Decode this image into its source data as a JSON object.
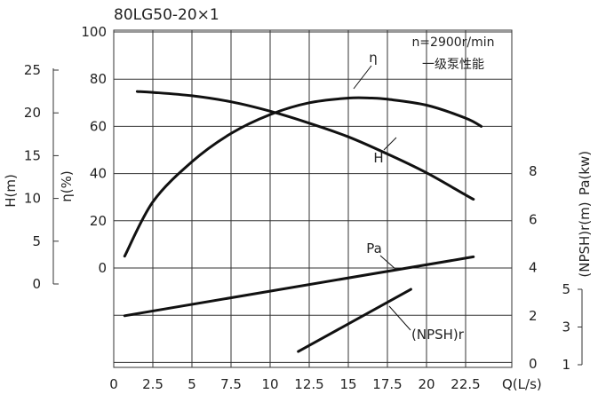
{
  "chart_data": {
    "type": "line",
    "title": "80LG50-20×1",
    "annotation_lines": [
      "n=2900r/min",
      "一级泵性能"
    ],
    "x": {
      "label": "Q(L/s)",
      "range": [
        0,
        25
      ],
      "ticks": [
        0,
        2.5,
        5,
        7.5,
        10,
        12.5,
        15,
        17.5,
        20,
        22.5
      ],
      "tick_labels": [
        "0",
        "2.5",
        "5",
        "7.5",
        "10",
        "12.5",
        "15",
        "17.5",
        "20",
        "22.5"
      ]
    },
    "axes": {
      "H": {
        "label": "H(m)",
        "ticks": [
          "0",
          "5",
          "10",
          "15",
          "20",
          "25"
        ]
      },
      "eta": {
        "label": "η(%)",
        "ticks": [
          "0",
          "20",
          "40",
          "60",
          "80",
          "100"
        ]
      },
      "Pa": {
        "label": "Pa(kw)",
        "ticks": [
          "0",
          "2",
          "4",
          "6",
          "8"
        ]
      },
      "NPSH": {
        "label": "(NPSH)r(m)",
        "ticks": [
          "1",
          "3",
          "5"
        ]
      }
    },
    "grid": true,
    "series": [
      {
        "name": "H",
        "unit": "m",
        "points": [
          [
            1.5,
            22.5
          ],
          [
            2.5,
            22.4
          ],
          [
            5,
            22.0
          ],
          [
            7.5,
            21.3
          ],
          [
            10,
            20.2
          ],
          [
            12.5,
            18.8
          ],
          [
            15,
            17.2
          ],
          [
            17.5,
            15.2
          ],
          [
            20,
            13.0
          ],
          [
            22.5,
            10.4
          ],
          [
            23,
            9.9
          ]
        ]
      },
      {
        "name": "η",
        "unit": "%",
        "points": [
          [
            0.7,
            5
          ],
          [
            2.5,
            28
          ],
          [
            5,
            45
          ],
          [
            7.5,
            57
          ],
          [
            10,
            65
          ],
          [
            12.5,
            70
          ],
          [
            15,
            72
          ],
          [
            16.5,
            72
          ],
          [
            17.5,
            71.5
          ],
          [
            20,
            69
          ],
          [
            22.5,
            63.5
          ],
          [
            23.5,
            60
          ]
        ]
      },
      {
        "name": "Pa",
        "unit": "kw",
        "points": [
          [
            0.7,
            2.0
          ],
          [
            23,
            4.45
          ]
        ]
      },
      {
        "name": "(NPSH)r",
        "unit": "m",
        "points": [
          [
            11.8,
            1.7
          ],
          [
            19,
            5.0
          ]
        ]
      }
    ],
    "curve_labels": {
      "eta": "η",
      "H": "H",
      "Pa": "Pa",
      "NPSH": "(NPSH)r"
    }
  }
}
